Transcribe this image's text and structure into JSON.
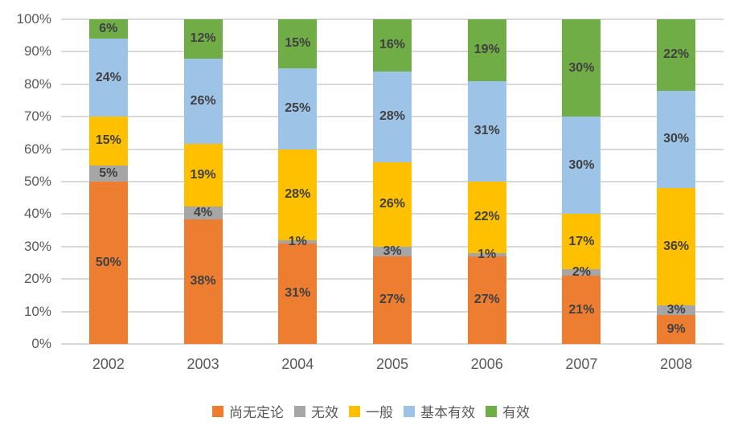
{
  "background": "#FFFFFF",
  "chart_data": {
    "type": "bar",
    "stacked": true,
    "units": "percent",
    "categories": [
      "2002",
      "2003",
      "2004",
      "2005",
      "2006",
      "2007",
      "2008"
    ],
    "series": [
      {
        "name": "尚无定论",
        "color": "#ED7D31",
        "values": [
          50,
          38,
          31,
          27,
          27,
          21,
          9
        ]
      },
      {
        "name": "无效",
        "color": "#A6A6A6",
        "values": [
          5,
          4,
          1,
          3,
          1,
          2,
          3
        ]
      },
      {
        "name": "一般",
        "color": "#FFC000",
        "values": [
          15,
          19,
          28,
          26,
          22,
          17,
          36
        ]
      },
      {
        "name": "基本有效",
        "color": "#9DC3E6",
        "values": [
          24,
          26,
          25,
          28,
          31,
          30,
          30
        ]
      },
      {
        "name": "有效",
        "color": "#70AD47",
        "values": [
          6,
          12,
          15,
          16,
          19,
          30,
          22
        ]
      }
    ],
    "y_ticks": [
      "0%",
      "10%",
      "20%",
      "30%",
      "40%",
      "50%",
      "60%",
      "70%",
      "80%",
      "90%",
      "100%"
    ],
    "ylim": [
      0,
      100
    ],
    "grid": true,
    "legend_position": "bottom",
    "data_label_suffix": "%",
    "colors": {
      "axis_text": "#595959",
      "data_label": "#404040",
      "gridline": "#D9D9D9",
      "background": "#FFFFFF"
    }
  }
}
